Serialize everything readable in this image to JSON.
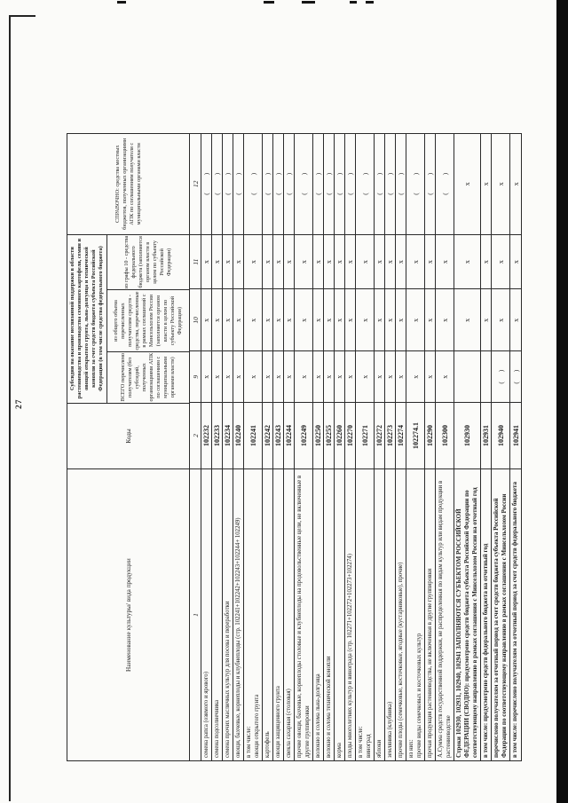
{
  "page": {
    "number": "27"
  },
  "table": {
    "title_merged": "Субсидии на оказание несвязанной поддержки в области растениеводства и производства семенного картофеля, семян и овощей открытого грунта, льна-долгунца и технической конопли за счет средств бюджета субъекта Российской Федерации (в том числе средства федерального бюджета)",
    "col1_header": "Наименование культуры/ вида продукции",
    "col2_header": "Коды",
    "col9_header": "ВСЕГО перечислено получателям (без субсидий, полученных организациями АПК по соглашениям с муниципальными органами власти)",
    "col10_header": "из общего объема перечисленных получателям средств - средства, перечисленные в рамках соглашений с Минсельхозом России (заполняется органом власти в целом по субъекту Российской Федерации)",
    "col11_header": "из графы 10 - средства федерального бюджета (заполняется органом власти в целом по субъекту Российской Федерации)",
    "col12_header": "СПРАВОЧНО: средства местных бюджетов, полученных организациями АПК по соглашениям получателя с муниципальными органами власти",
    "column_numbers": [
      "1",
      "2",
      "9",
      "10",
      "11",
      "12"
    ],
    "rows": [
      {
        "label": "семена рапса (озимого и ярового)",
        "code": "102232",
        "c9": "х",
        "c10": "х",
        "c11": "х",
        "c12": "( )"
      },
      {
        "label": "семена подсолнечника",
        "code": "102233",
        "c9": "х",
        "c10": "х",
        "c11": "х",
        "c12": "( )"
      },
      {
        "label": "семена прочих масличных культур для посева и переработки",
        "code": "102234",
        "c9": "х",
        "c10": "х",
        "c11": "х",
        "c12": "( )"
      },
      {
        "label": "овощи, бахчевые, корнеплоды и клубнеплоды (стр. 102241+102242+102243+102244+ 102249)",
        "code": "102240",
        "c9": "х",
        "c10": "х",
        "c11": "х",
        "c12": "( )"
      },
      {
        "label": [
          "в том числе:",
          "овощи открытого грунта"
        ],
        "code": "102241",
        "c9": "х",
        "c10": "х",
        "c11": "х",
        "c12": "( )"
      },
      {
        "label": "картофель",
        "code": "102242",
        "c9": "х",
        "c10": "х",
        "c11": "х",
        "c12": "( )"
      },
      {
        "label": "овощи защищенного грунта",
        "code": "102243",
        "c9": "х",
        "c10": "х",
        "c11": "х",
        "c12": "( )"
      },
      {
        "label": "свекла сахарная (столовая)",
        "code": "102244",
        "c9": "х",
        "c10": "х",
        "c11": "х",
        "c12": "( )"
      },
      {
        "label": "прочие овощи, бахчевые, корнеплоды столовые и клубнеплоды на продовольственные цели, не включенные в другие группировки",
        "code": "102249",
        "c9": "х",
        "c10": "х",
        "c11": "х",
        "c12": "( )"
      },
      {
        "label": "волокно и солома льна-долгунца",
        "code": "102250",
        "c9": "х",
        "c10": "х",
        "c11": "х",
        "c12": "( )"
      },
      {
        "label": "волокно и солома технической конопли",
        "code": "102255",
        "c9": "х",
        "c10": "х",
        "c11": "х",
        "c12": "( )"
      },
      {
        "label": "корма",
        "code": "102260",
        "c9": "х",
        "c10": "х",
        "c11": "х",
        "c12": "( )"
      },
      {
        "label": "плоды многолетних культур и винограда (стр. 102271+102272+102273+102274)",
        "code": "102270",
        "c9": "х",
        "c10": "х",
        "c11": "х",
        "c12": "( )"
      },
      {
        "label": [
          "в том числе:",
          "виноград"
        ],
        "code": "102271",
        "c9": "х",
        "c10": "х",
        "c11": "х",
        "c12": "( )"
      },
      {
        "label": "яблоки",
        "code": "102272",
        "c9": "х",
        "c10": "х",
        "c11": "х",
        "c12": "( )"
      },
      {
        "label": "земляника (клубника)",
        "code": "102273",
        "c9": "х",
        "c10": "х",
        "c11": "х",
        "c12": "( )"
      },
      {
        "label": "прочие плоды (семечковые, косточковые, ягодные (кустарниковые), прочие)",
        "code": "102274",
        "c9": "х",
        "c10": "х",
        "c11": "х",
        "c12": "( )"
      },
      {
        "label": [
          "из них:",
          "прочие виды семечковых и косточковых культур"
        ],
        "code": "102274.1",
        "c9": "х",
        "c10": "х",
        "c11": "х",
        "c12": "( )"
      },
      {
        "label": "прочая продукция растениеводства, не включенная в другие группировки",
        "code": "102290",
        "c9": "х",
        "c10": "х",
        "c11": "х",
        "c12": "( )"
      },
      {
        "label": "А.Сумма средств государственной поддержки, не распределенная по видам культур или видам продукции в растениеводстве",
        "code": "102300",
        "c9": "х",
        "c10": "х",
        "c11": "х",
        "c12": "( )"
      },
      {
        "label": "Строки 102930, 102931, 102940, 102941 ЗАПОЛНЯЮТСЯ СУБЪЕКТОМ РОССИЙСКОЙ ФЕДЕРАЦИИ (СВОДНО): предусмотрено средств бюджета субъекта Российской Федерации по соответствующему направлению в рамках соглашения с Минсельхозом России на отчетный год",
        "code": "102930",
        "bold": true,
        "c9": "",
        "c10": "х",
        "c11": "х",
        "c12": "х"
      },
      {
        "label": "в том числе: предусмотрено средств федерального бюджета на отчетный год",
        "code": "102931",
        "bold": true,
        "c9": "",
        "c10": "х",
        "c11": "х",
        "c12": "х"
      },
      {
        "label": "перечислено получателям за отчетный период за счет средств бюджета субъекта Российской Федерации по соответствующему направлению в рамках соглашения с Минсельхозом России",
        "code": "102940",
        "bold": true,
        "c9": "( )",
        "c10": "х",
        "c11": "х",
        "c12": "х"
      },
      {
        "label": "в том числе: перечислено получателям за отчетный период за счет средств федерального бюджета",
        "code": "102941",
        "bold": true,
        "c9": "( )",
        "c10": "х",
        "c11": "х",
        "c12": "х"
      }
    ]
  }
}
